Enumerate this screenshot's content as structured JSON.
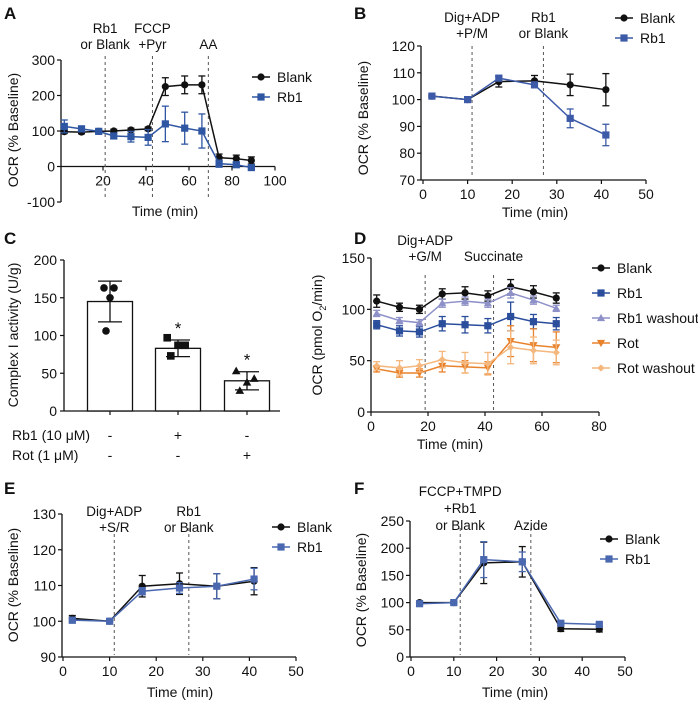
{
  "chart_data": [
    {
      "panel": "A",
      "type": "line",
      "xlabel": "Time (min)",
      "ylabel": "OCR (% Baseline)",
      "xlim": [
        0,
        100
      ],
      "ylim": [
        -100,
        300
      ],
      "xticks": [
        20,
        40,
        60,
        80,
        100
      ],
      "yticks": [
        -100,
        0,
        100,
        200,
        300
      ],
      "grid": false,
      "legend": "right",
      "annotations": [
        {
          "lines": [
            "Rb1",
            "or Blank"
          ],
          "x": 21
        },
        {
          "lines": [
            "FCCP",
            "+Pyr"
          ],
          "x": 43
        },
        {
          "lines": [
            "AA"
          ],
          "x": 69
        }
      ],
      "x": [
        2,
        10,
        18,
        25,
        33,
        41,
        49,
        58,
        66,
        74,
        82,
        89
      ],
      "series": [
        {
          "name": "Blank",
          "color": "#111111",
          "marker": "circle",
          "values": [
            98,
            97,
            99,
            100,
            103,
            106,
            225,
            230,
            230,
            25,
            22,
            17
          ],
          "errors": [
            5,
            5,
            3,
            5,
            5,
            5,
            25,
            25,
            25,
            10,
            10,
            10
          ]
        },
        {
          "name": "Rb1",
          "color": "#2f56a3",
          "marker": "square",
          "values": [
            113,
            106,
            99,
            86,
            84,
            82,
            120,
            108,
            100,
            8,
            5,
            -3
          ],
          "errors": [
            18,
            8,
            5,
            8,
            15,
            22,
            50,
            45,
            48,
            10,
            5,
            5
          ]
        }
      ]
    },
    {
      "panel": "B",
      "type": "line",
      "xlabel": "Time (min)",
      "ylabel": "OCR (% Baseline)",
      "xlim": [
        0,
        50
      ],
      "ylim": [
        70,
        120
      ],
      "xticks": [
        0,
        10,
        20,
        30,
        40,
        50
      ],
      "yticks": [
        70,
        80,
        90,
        100,
        110,
        120
      ],
      "grid": false,
      "legend": "top-right",
      "annotations": [
        {
          "lines": [
            "Dig+ADP",
            "+P/M"
          ],
          "x": 11
        },
        {
          "lines": [
            "Rb1",
            "or Blank"
          ],
          "x": 27
        }
      ],
      "x": [
        2,
        10,
        17,
        25,
        33,
        41
      ],
      "series": [
        {
          "name": "Blank",
          "color": "#111111",
          "marker": "circle",
          "values": [
            101.3,
            100,
            106.7,
            107,
            105.5,
            103.7
          ],
          "errors": [
            0.5,
            0.3,
            2,
            2,
            4,
            6
          ]
        },
        {
          "name": "Rb1",
          "color": "#3d5aa8",
          "marker": "square",
          "values": [
            101.3,
            100,
            108,
            105.5,
            93,
            86.8
          ],
          "errors": [
            0.5,
            0.3,
            1,
            1,
            3.5,
            4
          ]
        }
      ]
    },
    {
      "panel": "C",
      "type": "bar",
      "ylabel": "Complex I activity (U/g)",
      "ylim": [
        0,
        200
      ],
      "yticks": [
        0,
        50,
        100,
        150,
        200
      ],
      "grid": false,
      "treatments": [
        {
          "label": "Rb1 (10 μM)",
          "signs": [
            "-",
            "+",
            "-"
          ]
        },
        {
          "label": "Rot (1 μM)",
          "signs": [
            "-",
            "-",
            "+"
          ]
        }
      ],
      "values": [
        145,
        83,
        40
      ],
      "errors": [
        27,
        11,
        12
      ],
      "points": [
        [
          163,
          163,
          150,
          106
        ],
        [
          97,
          87,
          87,
          73
        ],
        [
          53,
          43,
          38,
          27
        ]
      ],
      "markers": [
        "circle",
        "square",
        "triangle"
      ],
      "significance": [
        "",
        "*",
        "*"
      ]
    },
    {
      "panel": "D",
      "type": "line",
      "xlabel": "Time (min)",
      "ylabel": "OCR (pmol O",
      "ylabel_sub": "2",
      "ylabel_end": "/min)",
      "xlim": [
        0,
        80
      ],
      "ylim": [
        0,
        150
      ],
      "xticks": [
        0,
        20,
        40,
        60,
        80
      ],
      "yticks": [
        0,
        50,
        100,
        150
      ],
      "grid": false,
      "legend": "right",
      "annotations": [
        {
          "lines": [
            "Dig+ADP",
            "+G/M"
          ],
          "x": 19
        },
        {
          "lines": [
            "Succinate"
          ],
          "x": 43
        }
      ],
      "x": [
        2,
        10,
        17,
        25,
        33,
        41,
        49,
        57,
        65
      ],
      "series": [
        {
          "name": "Blank",
          "color": "#111111",
          "marker": "circle",
          "values": [
            108,
            102,
            100,
            115,
            116,
            113,
            122,
            117,
            111
          ],
          "errors": [
            6,
            4,
            4,
            5,
            6,
            5,
            7,
            6,
            5
          ]
        },
        {
          "name": "Rb1",
          "color": "#2a4d9c",
          "marker": "square",
          "values": [
            85,
            79,
            78,
            86,
            85,
            84,
            93,
            88,
            86
          ],
          "errors": [
            4,
            5,
            5,
            7,
            8,
            7,
            14,
            7,
            6
          ]
        },
        {
          "name": "Rb1 washout",
          "color": "#8e91c8",
          "marker": "triangle",
          "values": [
            96,
            89,
            87,
            106,
            108,
            106,
            116,
            109,
            101
          ],
          "errors": [
            3,
            3,
            3,
            4,
            4,
            4,
            5,
            4,
            3
          ]
        },
        {
          "name": "Rot",
          "color": "#e8822c",
          "marker": "triangle-down",
          "values": [
            42,
            38,
            38,
            45,
            44,
            43,
            69,
            65,
            63
          ],
          "errors": [
            3,
            4,
            4,
            6,
            6,
            6,
            15,
            16,
            15
          ]
        },
        {
          "name": "Rot washout",
          "color": "#f4b77d",
          "marker": "diamond",
          "values": [
            45,
            43,
            45,
            51,
            48,
            47,
            63,
            60,
            58
          ],
          "errors": [
            4,
            7,
            6,
            8,
            10,
            11,
            16,
            13,
            12
          ]
        }
      ]
    },
    {
      "panel": "E",
      "type": "line",
      "xlabel": "Time (min)",
      "ylabel": "OCR (% Baseline)",
      "xlim": [
        0,
        50
      ],
      "ylim": [
        90,
        130
      ],
      "xticks": [
        0,
        10,
        20,
        30,
        40,
        50
      ],
      "yticks": [
        90,
        100,
        110,
        120,
        130
      ],
      "grid": false,
      "legend": "top-right",
      "annotations": [
        {
          "lines": [
            "Dig+ADP",
            "+S/R"
          ],
          "x": 11
        },
        {
          "lines": [
            "Rb1",
            "or Blank"
          ],
          "x": 27
        }
      ],
      "x": [
        2,
        10,
        17,
        25,
        33,
        41
      ],
      "series": [
        {
          "name": "Blank",
          "color": "#111111",
          "marker": "circle",
          "values": [
            100.8,
            100,
            109.8,
            110.5,
            109.8,
            111.2
          ],
          "errors": [
            0.8,
            0.3,
            3,
            3,
            3.5,
            3.8
          ]
        },
        {
          "name": "Rb1",
          "color": "#4a68b0",
          "marker": "square",
          "values": [
            100.3,
            100,
            108.4,
            109.3,
            109.8,
            111.8
          ],
          "errors": [
            0.8,
            0.3,
            1,
            1.5,
            3.5,
            3
          ]
        }
      ]
    },
    {
      "panel": "F",
      "type": "line",
      "xlabel": "Time (min)",
      "ylabel": "OCR (% Baseline)",
      "xlim": [
        0,
        50
      ],
      "ylim": [
        0,
        250
      ],
      "xticks": [
        0,
        10,
        20,
        30,
        40,
        50
      ],
      "yticks": [
        0,
        50,
        100,
        150,
        200,
        250
      ],
      "grid": false,
      "legend": "right",
      "annotations": [
        {
          "lines": [
            "FCCP+TMPD",
            "+Rb1",
            "or Blank"
          ],
          "x": 11.5
        },
        {
          "lines": [
            "Azide"
          ],
          "x": 28
        }
      ],
      "x": [
        2,
        10,
        17,
        26,
        35,
        44
      ],
      "series": [
        {
          "name": "Blank",
          "color": "#111111",
          "marker": "circle",
          "values": [
            100,
            100,
            173,
            175,
            52,
            51
          ],
          "errors": [
            3,
            2,
            38,
            28,
            5,
            5
          ]
        },
        {
          "name": "Rb1",
          "color": "#4a68b0",
          "marker": "square",
          "values": [
            98,
            100,
            179,
            175,
            62,
            60
          ],
          "errors": [
            3,
            2,
            33,
            18,
            3,
            3
          ]
        }
      ]
    }
  ]
}
